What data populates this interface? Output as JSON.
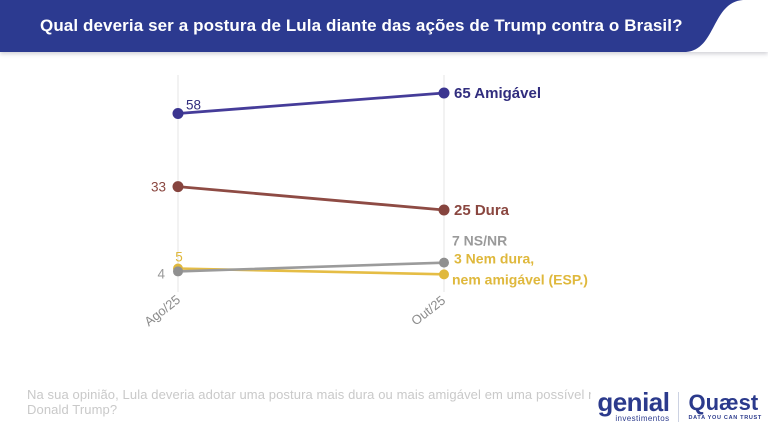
{
  "header": {
    "title": "Qual deveria ser a postura de Lula diante das ações de Trump contra o Brasil?",
    "bg_color": "#2c3a90"
  },
  "chart_data": {
    "type": "line",
    "subtype": "slope-chart",
    "categories": [
      "Ago/25",
      "Out/25"
    ],
    "series": [
      {
        "name": "Amigável",
        "values": [
          58,
          65
        ],
        "color": "#453c99",
        "point_color": "#3b3590",
        "label_color": "#312d7e",
        "start_label": "58",
        "end_label": "65 Amigável"
      },
      {
        "name": "Dura",
        "values": [
          33,
          25
        ],
        "color": "#8e4b44",
        "point_color": "#86443e",
        "label_color": "#8a4740",
        "start_label": "33",
        "end_label": "25 Dura"
      },
      {
        "name": "NS/NR",
        "values": [
          4,
          7
        ],
        "color": "#9b9b9b",
        "point_color": "#909090",
        "label_color": "#9a9a9a",
        "start_label": "4",
        "end_label": "7 NS/NR"
      },
      {
        "name": "Nem dura, nem amigável (ESP.)",
        "values": [
          5,
          3
        ],
        "color": "#e5bd45",
        "point_color": "#e0b83c",
        "label_color": "#dfb83c",
        "start_label": "5",
        "end_label": "3 Nem dura,",
        "end_label_line2": "nem amigável (ESP.)"
      }
    ],
    "title": "Qual deveria ser a postura de Lula diante das ações de Trump contra o Brasil?",
    "xlabel": "",
    "ylabel": "",
    "ylim": [
      0,
      70
    ],
    "grid": "vertical-category-lines-only",
    "grid_color": "#e6e6e6",
    "axis_label_color": "#8c8c8c",
    "legend": "inline-end-labels"
  },
  "footer": {
    "question": "Na sua opinião, Lula deveria adotar uma postura mais dura ou mais amigável em uma possível reunião com Donald Trump?",
    "logos": {
      "genial": {
        "name": "genial",
        "sub": "investimentos"
      },
      "quaest": {
        "name": "Quæst",
        "tagline": "DATA YOU CAN TRUST"
      }
    }
  }
}
